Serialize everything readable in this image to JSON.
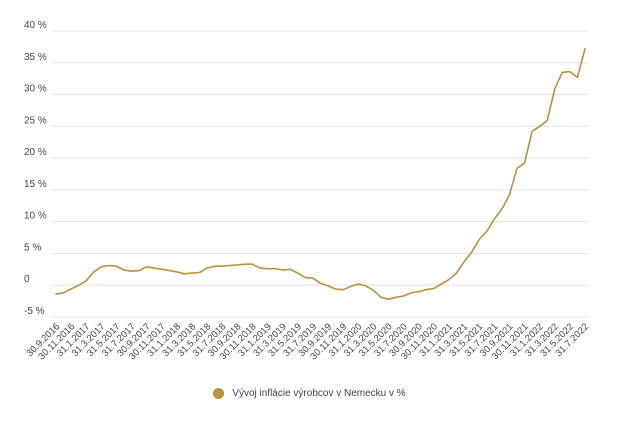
{
  "chart_data": {
    "type": "line",
    "title": "",
    "xlabel": "",
    "ylabel": "",
    "ylim": [
      -5,
      40
    ],
    "y_ticks": [
      -5,
      0,
      5,
      10,
      15,
      20,
      25,
      30,
      35,
      40
    ],
    "y_tick_labels": [
      "-5 %",
      "0",
      "5 %",
      "10 %",
      "15 %",
      "20 %",
      "25 %",
      "30 %",
      "35 %",
      "40 %"
    ],
    "grid": true,
    "legend_position": "bottom",
    "color": "#b8933a",
    "x_tick_labels": [
      "30.9.2016",
      "30.11.2016",
      "31.1.2017",
      "31.3.2017",
      "31.5.2017",
      "31.7.2017",
      "30.9.2017",
      "30.11.2017",
      "31.1.2018",
      "31.3.2018",
      "31.5.2018",
      "31.7.2018",
      "30.9.2018",
      "30.11.2018",
      "31.1.2019",
      "31.3.2019",
      "31.5.2019",
      "31.7.2019",
      "30.9.2019",
      "30.11.2019",
      "31.1.2020",
      "31.3.2020",
      "31.5.2020",
      "31.7.2020",
      "30.9.2020",
      "30.11.2020",
      "31.1.2021",
      "31.3.2021",
      "31.5.2021",
      "31.7.2021",
      "30.9.2021",
      "30.11.2021",
      "31.1.2022",
      "31.3.2022",
      "31.5.2022",
      "31.7.2022"
    ],
    "series": [
      {
        "name": "Vývoj inflácie výrobcov v Nemecku v %",
        "x": [
          "9/2016",
          "10/2016",
          "11/2016",
          "12/2016",
          "1/2017",
          "2/2017",
          "3/2017",
          "4/2017",
          "5/2017",
          "6/2017",
          "7/2017",
          "8/2017",
          "9/2017",
          "10/2017",
          "11/2017",
          "12/2017",
          "1/2018",
          "2/2018",
          "3/2018",
          "4/2018",
          "5/2018",
          "6/2018",
          "7/2018",
          "8/2018",
          "9/2018",
          "10/2018",
          "11/2018",
          "12/2018",
          "1/2019",
          "2/2019",
          "3/2019",
          "4/2019",
          "5/2019",
          "6/2019",
          "7/2019",
          "8/2019",
          "9/2019",
          "10/2019",
          "11/2019",
          "12/2019",
          "1/2020",
          "2/2020",
          "3/2020",
          "4/2020",
          "5/2020",
          "6/2020",
          "7/2020",
          "8/2020",
          "9/2020",
          "10/2020",
          "11/2020",
          "12/2020",
          "1/2021",
          "2/2021",
          "3/2021",
          "4/2021",
          "5/2021",
          "6/2021",
          "7/2021",
          "8/2021",
          "9/2021",
          "10/2021",
          "11/2021",
          "12/2021",
          "1/2022",
          "2/2022",
          "3/2022",
          "4/2022",
          "5/2022",
          "6/2022",
          "7/2022"
        ],
        "values": [
          -1.4,
          -1.2,
          -0.6,
          0.0,
          0.7,
          2.1,
          2.9,
          3.1,
          3.0,
          2.4,
          2.2,
          2.3,
          2.9,
          2.7,
          2.5,
          2.3,
          2.1,
          1.8,
          1.9,
          2.0,
          2.7,
          3.0,
          3.0,
          3.1,
          3.2,
          3.3,
          3.3,
          2.7,
          2.6,
          2.6,
          2.4,
          2.5,
          1.9,
          1.2,
          1.1,
          0.3,
          -0.1,
          -0.6,
          -0.7,
          -0.2,
          0.2,
          -0.1,
          -0.8,
          -1.9,
          -2.2,
          -1.9,
          -1.7,
          -1.2,
          -1.0,
          -0.7,
          -0.5,
          0.2,
          0.9,
          1.9,
          3.7,
          5.2,
          7.2,
          8.5,
          10.4,
          12.0,
          14.2,
          18.4,
          19.2,
          24.2,
          25.0,
          25.9,
          30.9,
          33.5,
          33.6,
          32.7,
          37.2
        ]
      }
    ]
  },
  "legend": {
    "label": "Vývoj inflácie výrobcov v Nemecku v %",
    "color": "#b8933a"
  }
}
